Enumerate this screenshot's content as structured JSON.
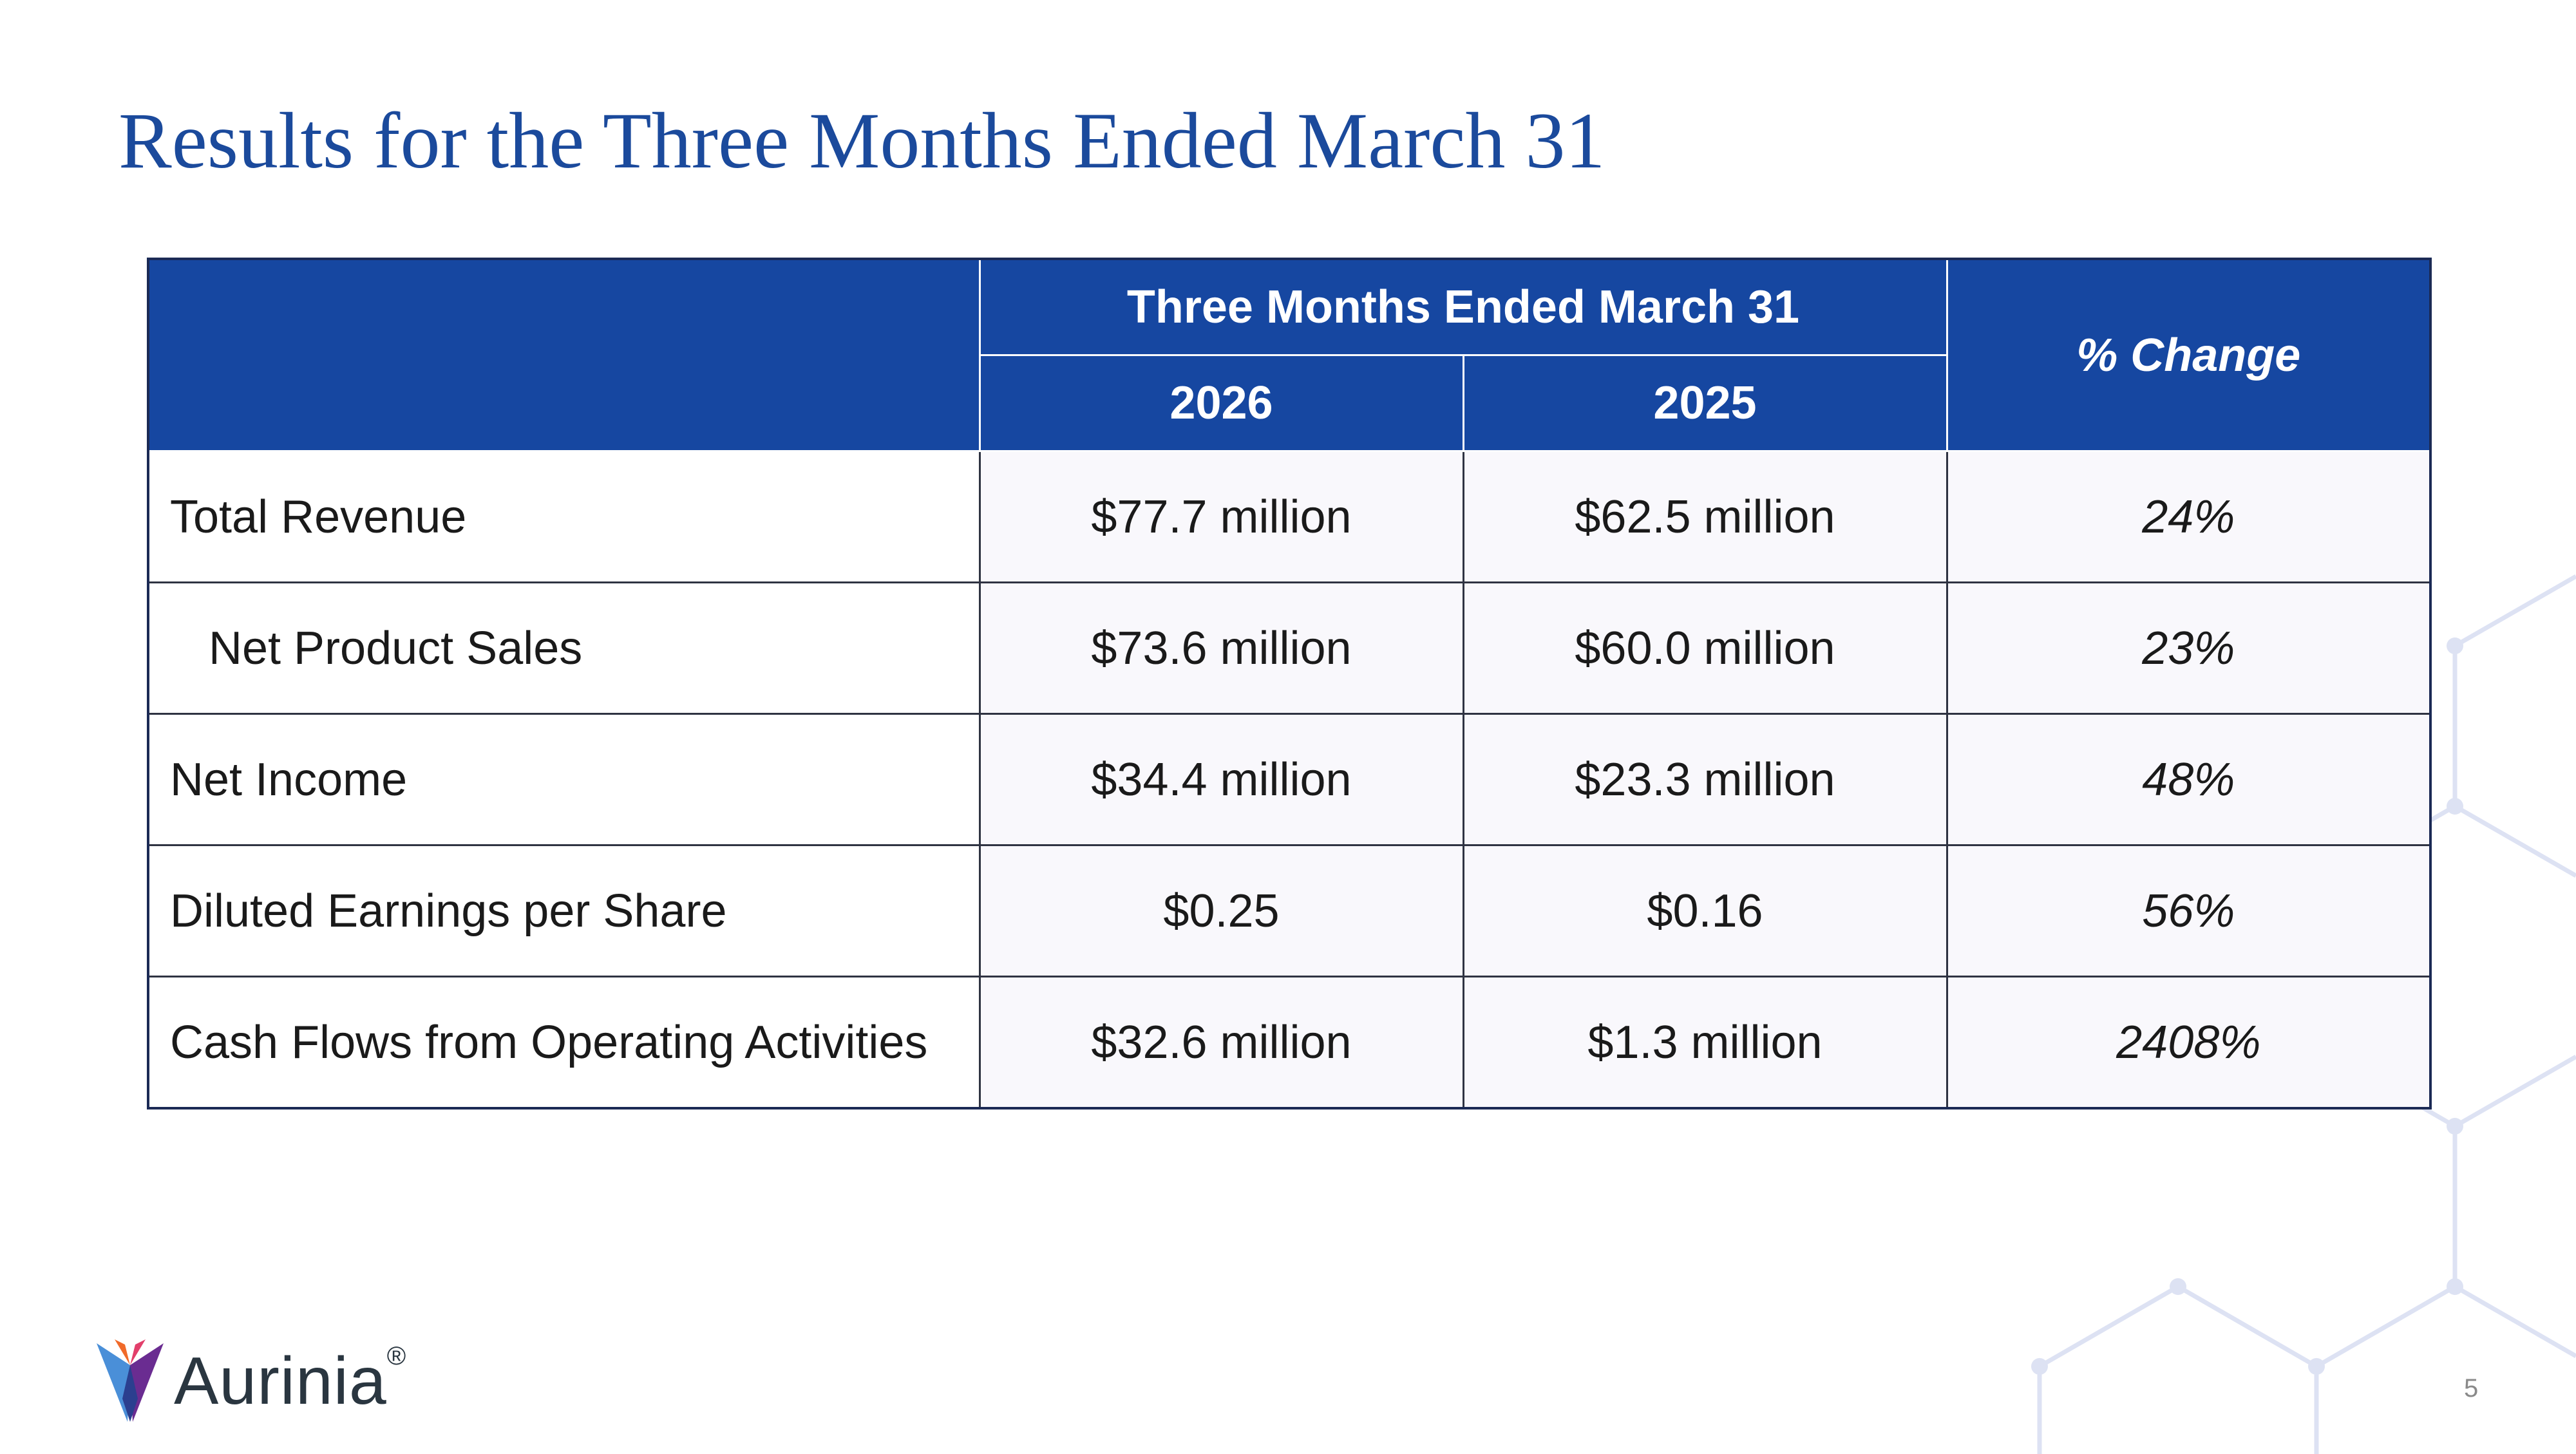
{
  "title": "Results for the Three Months Ended March 31",
  "table": {
    "group_header": "Three Months Ended March 31",
    "change_header": "% Change",
    "years": [
      "2026",
      "2025"
    ],
    "rows": [
      {
        "label": "Total Revenue",
        "v2026": "$77.7 million",
        "v2025": "$62.5 million",
        "change": "24%"
      },
      {
        "label": "Net Product Sales",
        "v2026": "$73.6 million",
        "v2025": "$60.0 million",
        "change": "23%"
      },
      {
        "label": "Net Income",
        "v2026": "$34.4 million",
        "v2025": "$23.3 million",
        "change": "48%"
      },
      {
        "label": "Diluted Earnings per Share",
        "v2026": "$0.25",
        "v2025": "$0.16",
        "change": "56%"
      },
      {
        "label": "Cash Flows from Operating Activities",
        "v2026": "$32.6 million",
        "v2025": "$1.3 million",
        "change": "2408%"
      }
    ]
  },
  "logo": {
    "name": "Aurinia",
    "mark": "®"
  },
  "page_number": "5",
  "colors": {
    "title": "#1b4a9c",
    "header_bg": "#1647a1",
    "pattern": "#dde2f3"
  }
}
